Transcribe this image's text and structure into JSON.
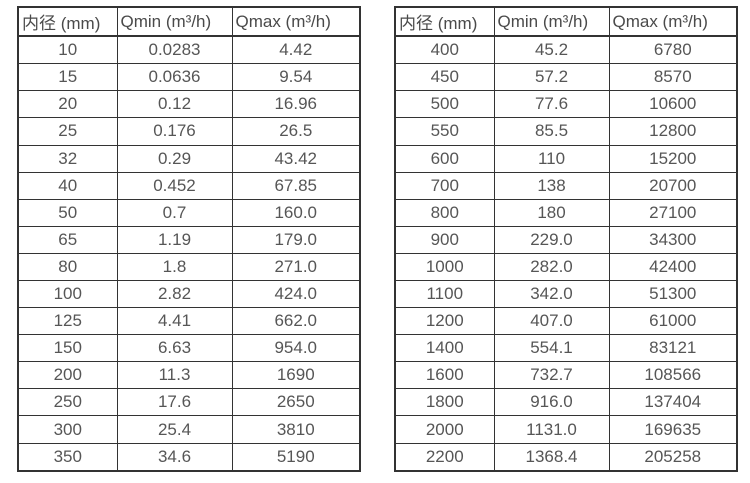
{
  "page": {
    "background": "#ffffff"
  },
  "colors": {
    "table_border": "#333333",
    "header_text": "#4a4a4a",
    "cell_text": "#565656"
  },
  "left_table": {
    "headers": [
      "内径 (mm)",
      "Qmin (m³/h)",
      "Qmax (m³/h)"
    ],
    "rows": [
      [
        "10",
        "0.0283",
        "4.42"
      ],
      [
        "15",
        "0.0636",
        "9.54"
      ],
      [
        "20",
        "0.12",
        "16.96"
      ],
      [
        "25",
        "0.176",
        "26.5"
      ],
      [
        "32",
        "0.29",
        "43.42"
      ],
      [
        "40",
        "0.452",
        "67.85"
      ],
      [
        "50",
        "0.7",
        "160.0"
      ],
      [
        "65",
        "1.19",
        "179.0"
      ],
      [
        "80",
        "1.8",
        "271.0"
      ],
      [
        "100",
        "2.82",
        "424.0"
      ],
      [
        "125",
        "4.41",
        "662.0"
      ],
      [
        "150",
        "6.63",
        "954.0"
      ],
      [
        "200",
        "11.3",
        "1690"
      ],
      [
        "250",
        "17.6",
        "2650"
      ],
      [
        "300",
        "25.4",
        "3810"
      ],
      [
        "350",
        "34.6",
        "5190"
      ]
    ]
  },
  "right_table": {
    "headers": [
      "内径 (mm)",
      "Qmin (m³/h)",
      "Qmax (m³/h)"
    ],
    "rows": [
      [
        "400",
        "45.2",
        "6780"
      ],
      [
        "450",
        "57.2",
        "8570"
      ],
      [
        "500",
        "77.6",
        "10600"
      ],
      [
        "550",
        "85.5",
        "12800"
      ],
      [
        "600",
        "110",
        "15200"
      ],
      [
        "700",
        "138",
        "20700"
      ],
      [
        "800",
        "180",
        "27100"
      ],
      [
        "900",
        "229.0",
        "34300"
      ],
      [
        "1000",
        "282.0",
        "42400"
      ],
      [
        "1100",
        "342.0",
        "51300"
      ],
      [
        "1200",
        "407.0",
        "61000"
      ],
      [
        "1400",
        "554.1",
        "83121"
      ],
      [
        "1600",
        "732.7",
        "108566"
      ],
      [
        "1800",
        "916.0",
        "137404"
      ],
      [
        "2000",
        "1131.0",
        "169635"
      ],
      [
        "2200",
        "1368.4",
        "205258"
      ]
    ]
  }
}
